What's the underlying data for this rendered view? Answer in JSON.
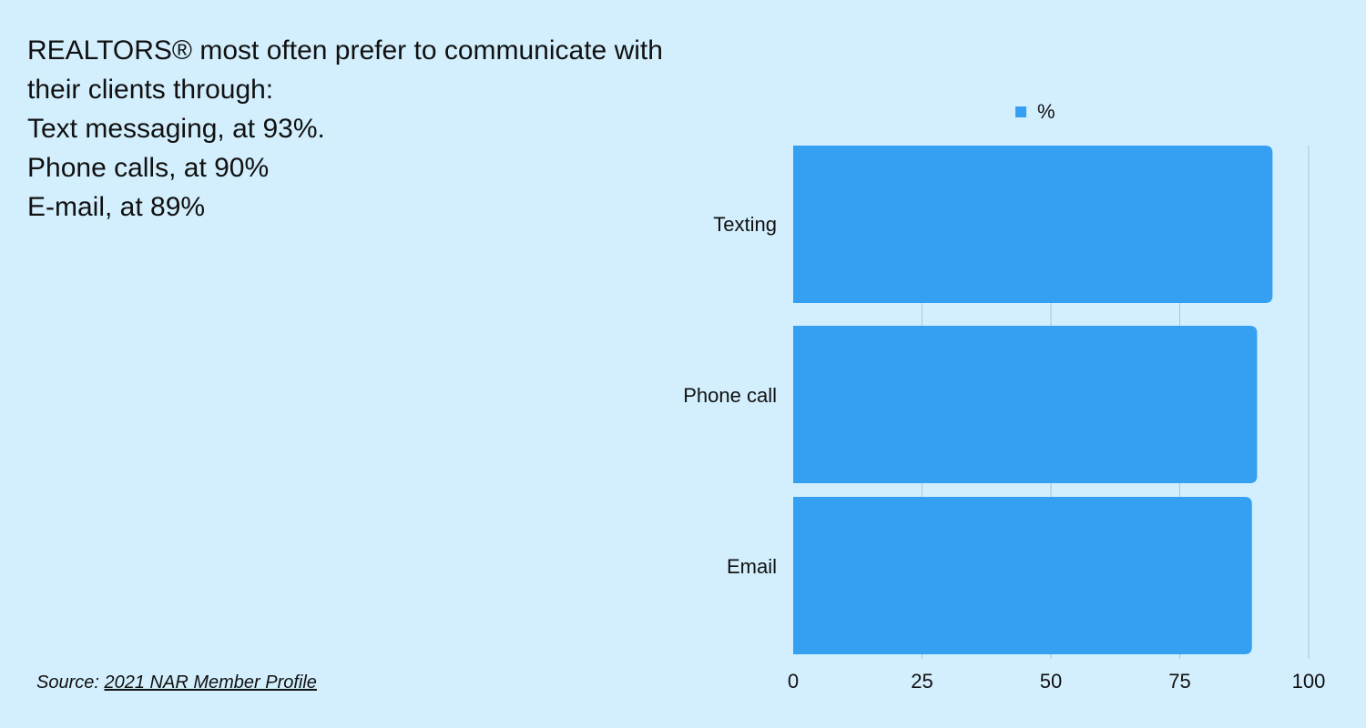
{
  "headline": [
    "REALTORS® most often prefer to communicate with",
    "their clients through:",
    "Text messaging, at 93%.",
    "Phone calls, at 90%",
    "E-mail, at 89%"
  ],
  "source": {
    "prefix": "Source:",
    "link": "2021 NAR Member Profile"
  },
  "chart_data": {
    "type": "hbar",
    "categories": [
      "Texting",
      "Phone call",
      "Email"
    ],
    "series": [
      {
        "name": "%",
        "color": "#35a0f2",
        "values": [
          93,
          90,
          89
        ]
      }
    ],
    "xlim": [
      0,
      100
    ],
    "xticks": [
      0,
      25,
      50,
      75,
      100
    ],
    "grid": true,
    "legend": "top"
  }
}
